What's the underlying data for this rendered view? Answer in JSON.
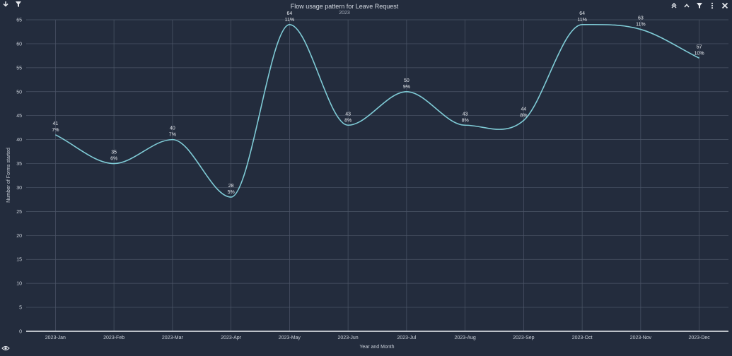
{
  "header": {
    "title": "Flow usage pattern for Leave Request",
    "subtitle": "2023"
  },
  "toolbar": {
    "left_icons": [
      "download-icon",
      "filter-icon"
    ],
    "right_icons": [
      "collapse-up-icon",
      "chevron-up-icon",
      "filter-icon",
      "more-vertical-icon",
      "close-icon"
    ]
  },
  "footer": {
    "icon": "eye-icon"
  },
  "colors": {
    "background": "#232c3d",
    "grid": "#4d5668",
    "line": "#7fcbd6",
    "text": "#c9cfd8"
  },
  "chart_data": {
    "type": "line",
    "title": "Flow usage pattern for Leave Request",
    "subtitle": "2023",
    "xlabel": "Year and Month",
    "ylabel": "Number of Forms started",
    "categories": [
      "2023-Jan",
      "2023-Feb",
      "2023-Mar",
      "2023-Apr",
      "2023-May",
      "2023-Jun",
      "2023-Jul",
      "2023-Aug",
      "2023-Sep",
      "2023-Oct",
      "2023-Nov",
      "2023-Dec"
    ],
    "values": [
      41,
      35,
      40,
      28,
      64,
      43,
      50,
      43,
      44,
      64,
      63,
      57
    ],
    "percent_labels": [
      "7%",
      "6%",
      "7%",
      "5%",
      "11%",
      "8%",
      "9%",
      "8%",
      "8%",
      "11%",
      "11%",
      "10%"
    ],
    "ylim": [
      0,
      65
    ],
    "yticks": [
      0,
      5,
      10,
      15,
      20,
      25,
      30,
      35,
      40,
      45,
      50,
      55,
      60,
      65
    ],
    "grid": true,
    "smooth": true
  }
}
